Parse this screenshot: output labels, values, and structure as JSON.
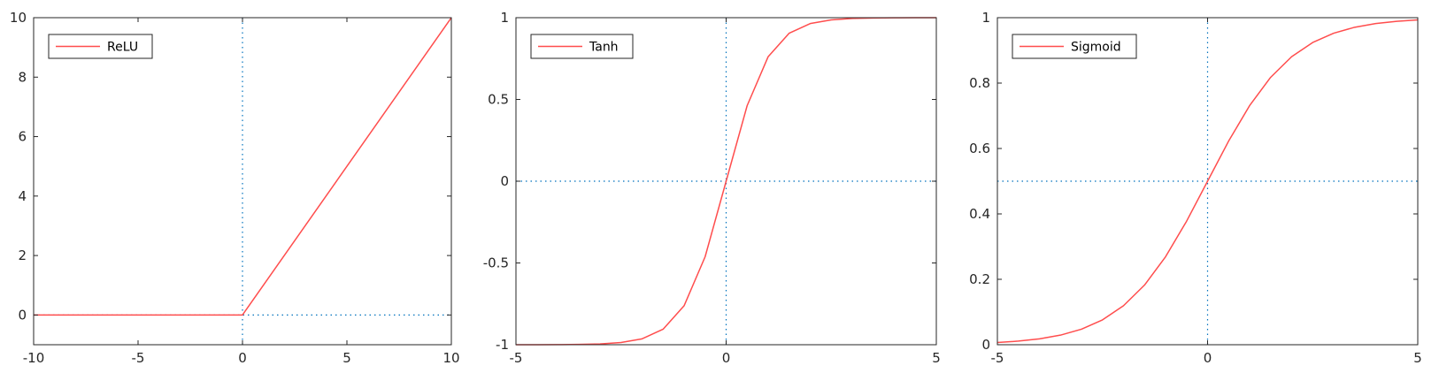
{
  "colors": {
    "series": "#FF4D4D",
    "reference": "#0072BD",
    "axes": "#262626"
  },
  "chart_data": [
    {
      "type": "line",
      "title": "",
      "xlabel": "",
      "ylabel": "",
      "xlim": [
        -10,
        10
      ],
      "ylim": [
        -1,
        10
      ],
      "xticks": [
        -10,
        -5,
        0,
        5,
        10
      ],
      "yticks": [
        0,
        2,
        4,
        6,
        8,
        10
      ],
      "xtick_labels": [
        "-10",
        "-5",
        "0",
        "5",
        "10"
      ],
      "ytick_labels": [
        "0",
        "2",
        "4",
        "6",
        "8",
        "10"
      ],
      "grid": false,
      "legend_position": "top-left",
      "reference_lines": {
        "x": 0,
        "y": 0
      },
      "series": [
        {
          "name": "ReLU",
          "x": [
            -10,
            0,
            10
          ],
          "y": [
            0,
            0,
            10
          ]
        }
      ]
    },
    {
      "type": "line",
      "title": "",
      "xlabel": "",
      "ylabel": "",
      "xlim": [
        -5,
        5
      ],
      "ylim": [
        -1,
        1
      ],
      "xticks": [
        -5,
        0,
        5
      ],
      "yticks": [
        -1,
        -0.5,
        0,
        0.5,
        1
      ],
      "xtick_labels": [
        "-5",
        "0",
        "5"
      ],
      "ytick_labels": [
        "-1",
        "-0.5",
        "0",
        "0.5",
        "1"
      ],
      "grid": false,
      "legend_position": "top-left",
      "reference_lines": {
        "x": 0,
        "y": 0
      },
      "series": [
        {
          "name": "Tanh",
          "x": [
            -5,
            -4.5,
            -4,
            -3.5,
            -3,
            -2.5,
            -2,
            -1.5,
            -1,
            -0.5,
            0,
            0.5,
            1,
            1.5,
            2,
            2.5,
            3,
            3.5,
            4,
            4.5,
            5
          ],
          "y": [
            -0.9999,
            -0.9998,
            -0.9993,
            -0.9982,
            -0.9951,
            -0.9866,
            -0.964,
            -0.9051,
            -0.7616,
            -0.4621,
            0,
            0.4621,
            0.7616,
            0.9051,
            0.964,
            0.9866,
            0.9951,
            0.9982,
            0.9993,
            0.9998,
            0.9999
          ]
        }
      ]
    },
    {
      "type": "line",
      "title": "",
      "xlabel": "",
      "ylabel": "",
      "xlim": [
        -5,
        5
      ],
      "ylim": [
        0,
        1
      ],
      "xticks": [
        -5,
        0,
        5
      ],
      "yticks": [
        0,
        0.2,
        0.4,
        0.6,
        0.8,
        1
      ],
      "xtick_labels": [
        "-5",
        "0",
        "5"
      ],
      "ytick_labels": [
        "0",
        "0.2",
        "0.4",
        "0.6",
        "0.8",
        "1"
      ],
      "grid": false,
      "legend_position": "top-left",
      "reference_lines": {
        "x": 0,
        "y": 0.5
      },
      "series": [
        {
          "name": "Sigmoid",
          "x": [
            -5,
            -4.5,
            -4,
            -3.5,
            -3,
            -2.5,
            -2,
            -1.5,
            -1,
            -0.5,
            0,
            0.5,
            1,
            1.5,
            2,
            2.5,
            3,
            3.5,
            4,
            4.5,
            5
          ],
          "y": [
            0.0067,
            0.011,
            0.018,
            0.0293,
            0.0474,
            0.0759,
            0.1192,
            0.1824,
            0.2689,
            0.3775,
            0.5,
            0.6225,
            0.7311,
            0.8176,
            0.8808,
            0.9241,
            0.9526,
            0.9707,
            0.982,
            0.989,
            0.9933
          ]
        }
      ]
    }
  ]
}
